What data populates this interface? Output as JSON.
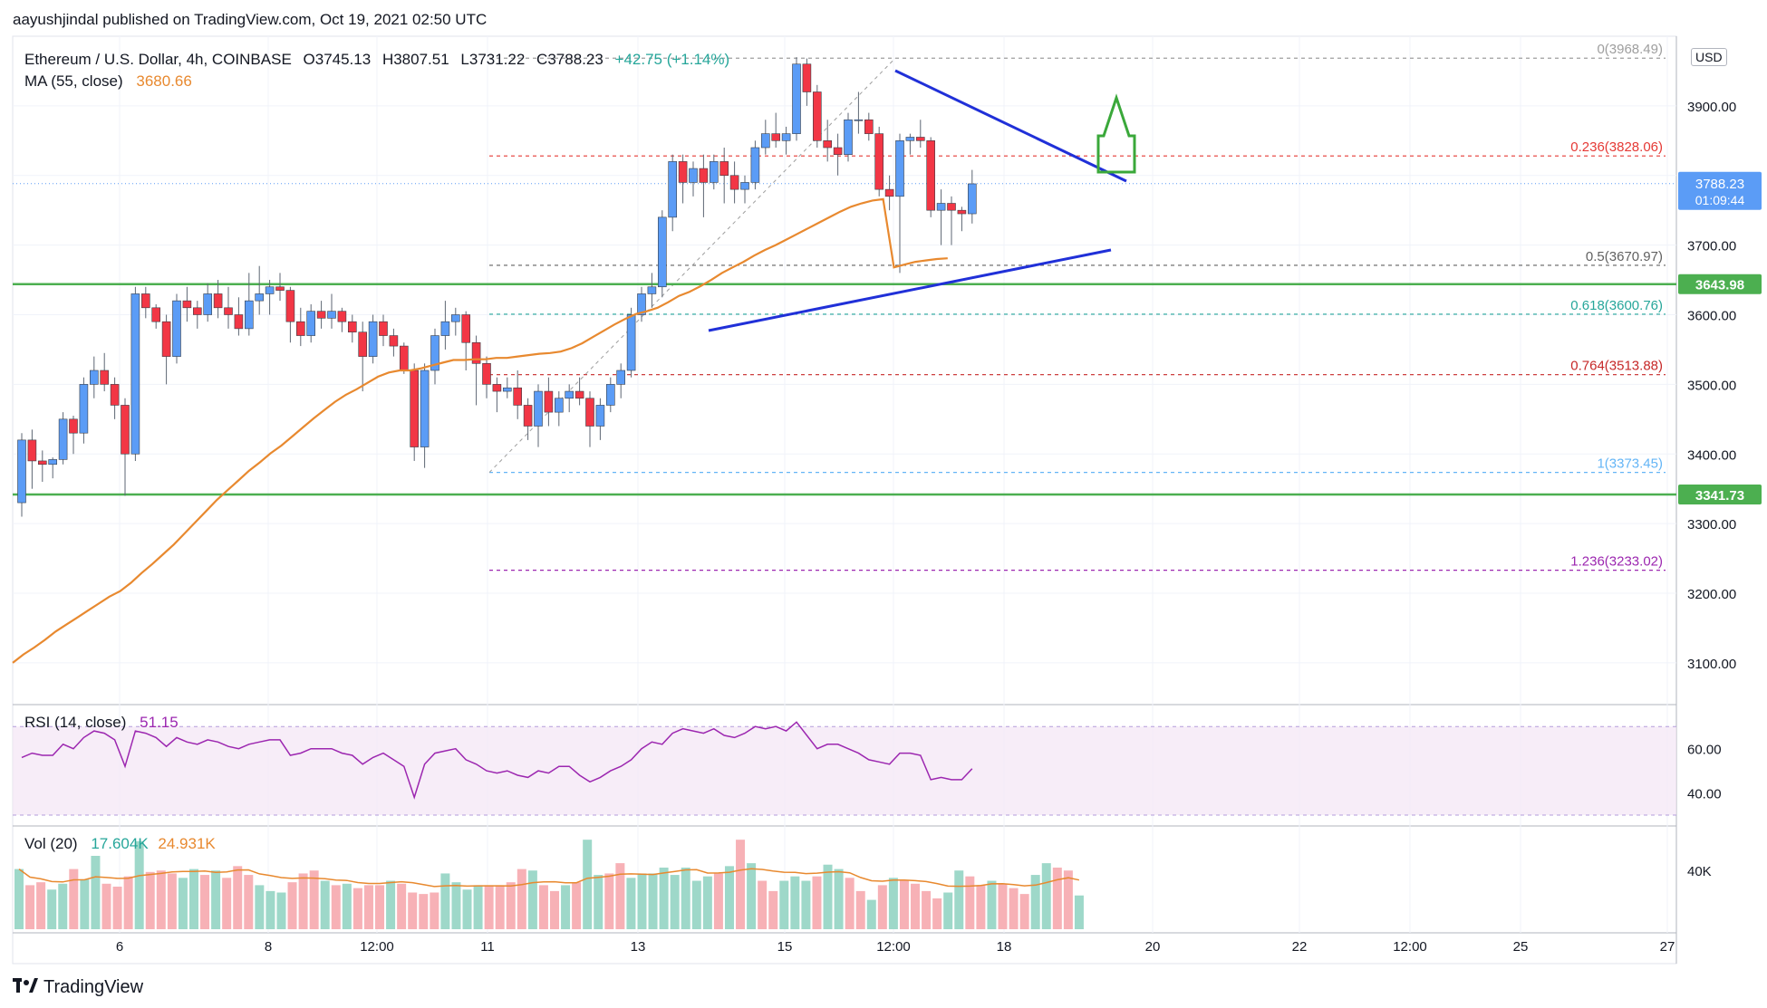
{
  "header": {
    "published": "aayushjindal published on TradingView.com, Oct 19, 2021 02:50 UTC"
  },
  "legend": {
    "symbol": "Ethereum / U.S. Dollar, 4h, COINBASE",
    "open": "O3745.13",
    "high": "H3807.51",
    "low": "L3731.22",
    "close": "C3788.23",
    "change": "+42.75 (+1.14%)",
    "ma_label": "MA (55, close)",
    "ma_value": "3680.66"
  },
  "rsi": {
    "label": "RSI (14, close)",
    "value": "51.15"
  },
  "volume": {
    "label": "Vol (20)",
    "value": "17.604K",
    "ma_value": "24.931K"
  },
  "currency_badge": "USD",
  "brand": {
    "icon": "tradingview-logo-icon",
    "name": "TradingView"
  },
  "colors": {
    "up": "#5b9cf6",
    "down": "#f23645",
    "ma": "#e8892f",
    "support": "#4caf50",
    "trendline": "#2030d8",
    "arrow": "#3aa83a",
    "rsi": "#9c27b0"
  },
  "chart_data": {
    "type": "candlestick",
    "timeframe": "4h",
    "x_ticks": [
      "6",
      "8",
      "12:00",
      "11",
      "13",
      "15",
      "12:00",
      "18",
      "20",
      "22",
      "12:00",
      "25",
      "27"
    ],
    "price_ticks": [
      3100,
      3200,
      3300,
      3400,
      3500,
      3600,
      3700,
      3800,
      3900
    ],
    "price_tick_labels": [
      "3100.00",
      "3200.00",
      "3300.00",
      "3400.00",
      "3500.00",
      "3600.00",
      "3700.00",
      "3800.00",
      "3900.00"
    ],
    "ylim": [
      3040,
      4000
    ],
    "last_price": {
      "value": 3788.23,
      "label": "3788.23",
      "countdown": "01:09:44"
    },
    "support_levels": [
      {
        "value": 3643.98,
        "label": "3643.98"
      },
      {
        "value": 3341.73,
        "label": "3341.73"
      }
    ],
    "fib_levels": [
      {
        "ratio": "0",
        "value": 3968.49,
        "label": "0(3968.49)",
        "color": "#9e9e9e"
      },
      {
        "ratio": "0.236",
        "value": 3828.06,
        "label": "0.236(3828.06)",
        "color": "#e53935"
      },
      {
        "ratio": "0.5",
        "value": 3670.97,
        "label": "0.5(3670.97)",
        "color": "#616161"
      },
      {
        "ratio": "0.618",
        "value": 3600.76,
        "label": "0.618(3600.76)",
        "color": "#26a69a"
      },
      {
        "ratio": "0.764",
        "value": 3513.88,
        "label": "0.764(3513.88)",
        "color": "#c62828"
      },
      {
        "ratio": "1",
        "value": 3373.45,
        "label": "1(3373.45)",
        "color": "#64b5f6"
      },
      {
        "ratio": "1.236",
        "value": 3233.02,
        "label": "1.236(3233.02)",
        "color": "#9c27b0"
      }
    ],
    "candles": [
      [
        3330,
        3430,
        3310,
        3420
      ],
      [
        3420,
        3435,
        3350,
        3390
      ],
      [
        3390,
        3405,
        3360,
        3385
      ],
      [
        3385,
        3395,
        3365,
        3392
      ],
      [
        3392,
        3460,
        3385,
        3450
      ],
      [
        3450,
        3455,
        3400,
        3430
      ],
      [
        3430,
        3510,
        3415,
        3500
      ],
      [
        3500,
        3540,
        3480,
        3520
      ],
      [
        3520,
        3545,
        3490,
        3500
      ],
      [
        3500,
        3510,
        3450,
        3470
      ],
      [
        3470,
        3480,
        3340,
        3400
      ],
      [
        3400,
        3640,
        3390,
        3630
      ],
      [
        3630,
        3640,
        3595,
        3610
      ],
      [
        3610,
        3615,
        3580,
        3590
      ],
      [
        3590,
        3600,
        3500,
        3540
      ],
      [
        3540,
        3630,
        3530,
        3620
      ],
      [
        3620,
        3640,
        3590,
        3610
      ],
      [
        3610,
        3620,
        3580,
        3600
      ],
      [
        3600,
        3645,
        3590,
        3630
      ],
      [
        3630,
        3650,
        3595,
        3610
      ],
      [
        3610,
        3640,
        3580,
        3600
      ],
      [
        3600,
        3625,
        3570,
        3580
      ],
      [
        3580,
        3660,
        3570,
        3620
      ],
      [
        3620,
        3670,
        3600,
        3630
      ],
      [
        3630,
        3650,
        3600,
        3640
      ],
      [
        3640,
        3660,
        3620,
        3635
      ],
      [
        3635,
        3640,
        3560,
        3590
      ],
      [
        3590,
        3610,
        3555,
        3570
      ],
      [
        3570,
        3615,
        3560,
        3605
      ],
      [
        3605,
        3620,
        3580,
        3595
      ],
      [
        3595,
        3630,
        3580,
        3605
      ],
      [
        3605,
        3610,
        3575,
        3590
      ],
      [
        3590,
        3600,
        3560,
        3575
      ],
      [
        3575,
        3590,
        3490,
        3540
      ],
      [
        3540,
        3600,
        3530,
        3590
      ],
      [
        3590,
        3600,
        3555,
        3570
      ],
      [
        3570,
        3580,
        3540,
        3555
      ],
      [
        3555,
        3560,
        3515,
        3520
      ],
      [
        3520,
        3530,
        3390,
        3410
      ],
      [
        3410,
        3530,
        3380,
        3520
      ],
      [
        3520,
        3580,
        3500,
        3570
      ],
      [
        3570,
        3620,
        3550,
        3590
      ],
      [
        3590,
        3610,
        3570,
        3600
      ],
      [
        3600,
        3605,
        3520,
        3560
      ],
      [
        3560,
        3570,
        3470,
        3530
      ],
      [
        3530,
        3540,
        3480,
        3500
      ],
      [
        3500,
        3510,
        3460,
        3490
      ],
      [
        3490,
        3510,
        3480,
        3495
      ],
      [
        3495,
        3520,
        3450,
        3470
      ],
      [
        3470,
        3480,
        3420,
        3440
      ],
      [
        3440,
        3500,
        3410,
        3490
      ],
      [
        3490,
        3510,
        3440,
        3460
      ],
      [
        3460,
        3490,
        3440,
        3480
      ],
      [
        3480,
        3500,
        3460,
        3490
      ],
      [
        3490,
        3510,
        3470,
        3480
      ],
      [
        3480,
        3490,
        3410,
        3440
      ],
      [
        3440,
        3480,
        3420,
        3470
      ],
      [
        3470,
        3510,
        3460,
        3500
      ],
      [
        3500,
        3530,
        3480,
        3520
      ],
      [
        3520,
        3610,
        3510,
        3600
      ],
      [
        3600,
        3640,
        3590,
        3630
      ],
      [
        3630,
        3660,
        3610,
        3640
      ],
      [
        3640,
        3750,
        3625,
        3740
      ],
      [
        3740,
        3830,
        3720,
        3820
      ],
      [
        3820,
        3830,
        3760,
        3790
      ],
      [
        3790,
        3820,
        3770,
        3810
      ],
      [
        3810,
        3830,
        3740,
        3790
      ],
      [
        3790,
        3830,
        3780,
        3820
      ],
      [
        3820,
        3840,
        3760,
        3800
      ],
      [
        3800,
        3820,
        3760,
        3780
      ],
      [
        3780,
        3800,
        3760,
        3790
      ],
      [
        3790,
        3850,
        3780,
        3840
      ],
      [
        3840,
        3880,
        3830,
        3860
      ],
      [
        3860,
        3890,
        3840,
        3850
      ],
      [
        3850,
        3870,
        3830,
        3860
      ],
      [
        3860,
        3970,
        3850,
        3960
      ],
      [
        3960,
        3968,
        3900,
        3920
      ],
      [
        3920,
        3930,
        3840,
        3850
      ],
      [
        3850,
        3880,
        3820,
        3840
      ],
      [
        3840,
        3860,
        3800,
        3830
      ],
      [
        3830,
        3890,
        3820,
        3880
      ],
      [
        3880,
        3920,
        3860,
        3880
      ],
      [
        3880,
        3890,
        3850,
        3860
      ],
      [
        3860,
        3870,
        3770,
        3780
      ],
      [
        3780,
        3800,
        3750,
        3770
      ],
      [
        3770,
        3860,
        3660,
        3850
      ],
      [
        3850,
        3860,
        3830,
        3855
      ],
      [
        3855,
        3880,
        3840,
        3850
      ],
      [
        3850,
        3855,
        3740,
        3750
      ],
      [
        3750,
        3780,
        3700,
        3760
      ],
      [
        3760,
        3770,
        3700,
        3750
      ],
      [
        3750,
        3755,
        3720,
        3745
      ],
      [
        3745,
        3808,
        3731,
        3788
      ]
    ],
    "ma55": [
      3100,
      3112,
      3122,
      3133,
      3145,
      3155,
      3165,
      3175,
      3185,
      3195,
      3203,
      3215,
      3229,
      3242,
      3256,
      3270,
      3286,
      3302,
      3318,
      3334,
      3348,
      3362,
      3376,
      3388,
      3401,
      3412,
      3425,
      3438,
      3451,
      3463,
      3475,
      3485,
      3493,
      3502,
      3511,
      3517,
      3520,
      3520,
      3523,
      3527,
      3531,
      3535,
      3535,
      3536,
      3536,
      3538,
      3538,
      3540,
      3542,
      3544,
      3545,
      3547,
      3552,
      3559,
      3568,
      3577,
      3586,
      3594,
      3601,
      3605,
      3610,
      3618,
      3627,
      3633,
      3641,
      3650,
      3660,
      3668,
      3676,
      3685,
      3693,
      3700,
      3708,
      3716,
      3724,
      3732,
      3740,
      3748,
      3755,
      3760,
      3764,
      3766,
      3668,
      3672,
      3676,
      3678,
      3680,
      3681
    ],
    "rsi": [
      56,
      58,
      57,
      57,
      62,
      60,
      65,
      68,
      67,
      64,
      52,
      68,
      67,
      65,
      61,
      65,
      63,
      62,
      64,
      63,
      61,
      60,
      62,
      63,
      64,
      64,
      57,
      58,
      60,
      60,
      60,
      58,
      57,
      53,
      56,
      58,
      55,
      52,
      38,
      53,
      58,
      59,
      60,
      55,
      53,
      50,
      49,
      50,
      48,
      47,
      50,
      49,
      52,
      52,
      48,
      45,
      47,
      50,
      52,
      55,
      60,
      63,
      62,
      67,
      69,
      68,
      67,
      69,
      66,
      65,
      67,
      70,
      69,
      70,
      68,
      72,
      66,
      60,
      62,
      62,
      60,
      58,
      55,
      54,
      53,
      58,
      58,
      57,
      46,
      47,
      46,
      46,
      51
    ],
    "volume": [
      41,
      30,
      32,
      27,
      31,
      41,
      34,
      50,
      31,
      29,
      36,
      60,
      39,
      40,
      38,
      35,
      41,
      37,
      40,
      35,
      43,
      37,
      30,
      26,
      25,
      32,
      38,
      40,
      33,
      30,
      31,
      28,
      30,
      30,
      33,
      31,
      25,
      24,
      25,
      38,
      32,
      27,
      30,
      30,
      30,
      32,
      41,
      40,
      30,
      26,
      30,
      32,
      61,
      37,
      38,
      45,
      35,
      38,
      38,
      42,
      37,
      42,
      33,
      36,
      38,
      43,
      61,
      45,
      33,
      26,
      33,
      36,
      33,
      36,
      44,
      41,
      35,
      26,
      20,
      30,
      35,
      33,
      31,
      26,
      21,
      25,
      40,
      36,
      30,
      33,
      31,
      28,
      24,
      37,
      45,
      42,
      40,
      23
    ],
    "volume_up": [
      1,
      0,
      0,
      1,
      1,
      0,
      1,
      1,
      0,
      0,
      0,
      1,
      0,
      0,
      0,
      1,
      1,
      0,
      1,
      0,
      0,
      0,
      1,
      1,
      1,
      0,
      0,
      0,
      1,
      0,
      1,
      0,
      0,
      0,
      1,
      0,
      0,
      0,
      0,
      1,
      1,
      1,
      1,
      0,
      0,
      0,
      0,
      1,
      0,
      0,
      1,
      0,
      1,
      1,
      0,
      0,
      1,
      1,
      1,
      1,
      1,
      1,
      1,
      1,
      0,
      1,
      0,
      1,
      0,
      0,
      1,
      1,
      1,
      0,
      1,
      1,
      0,
      0,
      1,
      0,
      1,
      0,
      0,
      0,
      0,
      1,
      1,
      0,
      0,
      1,
      0,
      0,
      0,
      1,
      1,
      0,
      0,
      1
    ]
  }
}
